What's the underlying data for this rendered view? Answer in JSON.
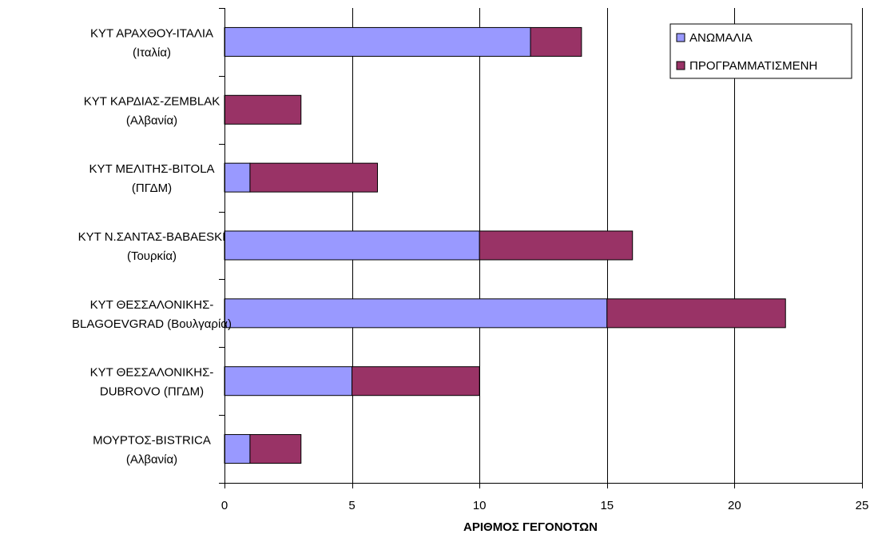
{
  "chart_data": {
    "type": "bar",
    "orientation": "horizontal",
    "stacked": true,
    "categories": [
      [
        "ΚΥΤ ΑΡΑΧΘΟΥ-ΙΤΑΛΙΑ",
        "(Ιταλία)"
      ],
      [
        "ΚΥΤ ΚΑΡΔΙΑΣ-ZEMBLAK",
        "(Αλβανία)"
      ],
      [
        "ΚΥΤ ΜΕΛΙΤΗΣ-BITOLA",
        "(ΠΓΔΜ)"
      ],
      [
        "ΚΥΤ Ν.ΣΑΝΤΑΣ-BABAESKI",
        "(Τουρκία)"
      ],
      [
        "ΚΥΤ ΘΕΣΣΑΛΟΝΙΚΗΣ-",
        "BLAGOEVGRAD (Βουλγαρία)"
      ],
      [
        "ΚΥΤ ΘΕΣΣΑΛΟΝΙΚΗΣ-",
        "DUBROVO (ΠΓΔΜ)"
      ],
      [
        "ΜΟΥΡΤΟΣ-BISTRICA",
        "(Αλβανία)"
      ]
    ],
    "series": [
      {
        "name": "ΑΝΩΜΑΛΙΑ",
        "color": "#9999ff",
        "values": [
          12,
          0,
          1,
          10,
          15,
          5,
          1
        ]
      },
      {
        "name": "ΠΡΟΓΡΑΜΜΑΤΙΣΜΕΝΗ",
        "color": "#993366",
        "values": [
          2,
          3,
          5,
          6,
          7,
          5,
          2
        ]
      }
    ],
    "xlabel": "ΑΡΙΘΜΟΣ ΓΕΓΟΝΟΤΩΝ",
    "xlim": [
      0,
      25
    ],
    "xticks": [
      0,
      5,
      10,
      15,
      20,
      25
    ],
    "grid": true,
    "legend_position": "top-right"
  }
}
